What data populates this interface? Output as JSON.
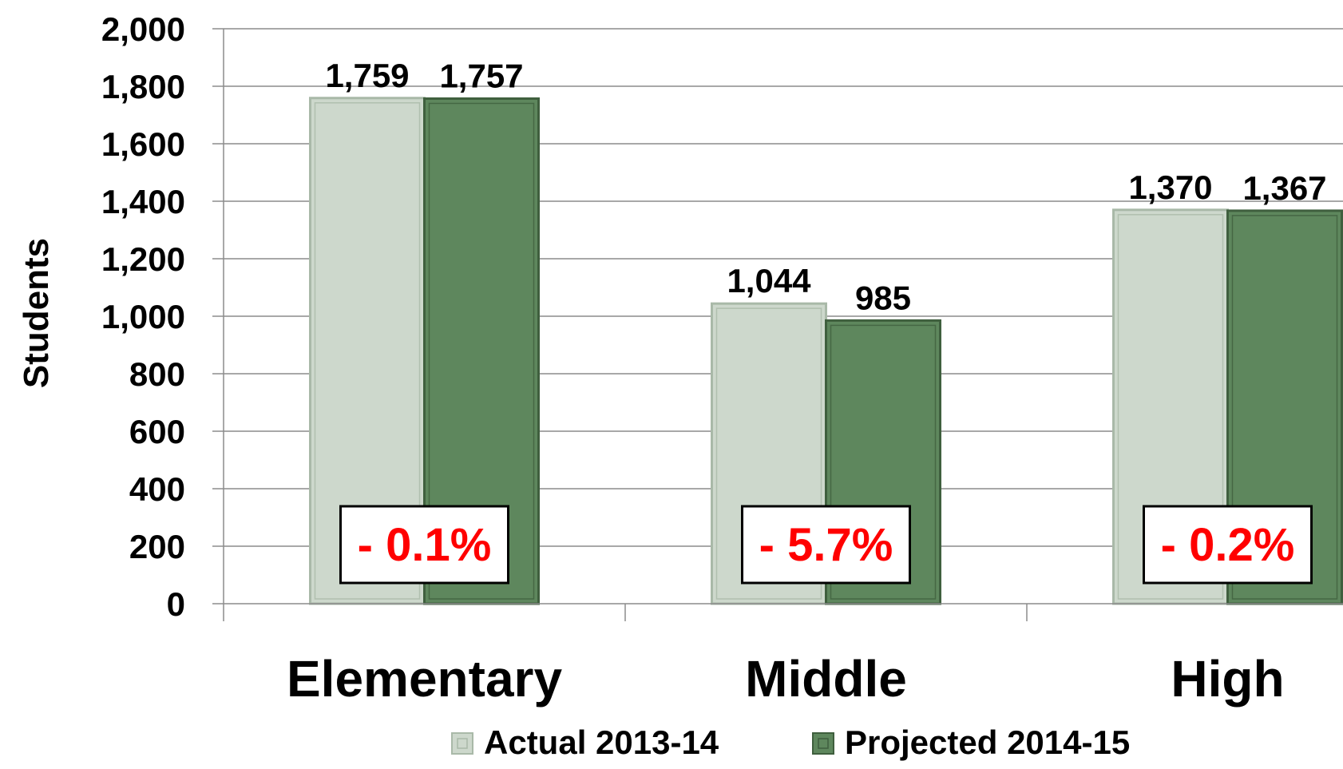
{
  "chart_data": {
    "type": "bar",
    "ylabel": "Students",
    "xlabel": "",
    "ylim": [
      0,
      2000
    ],
    "ytick_step": 200,
    "categories": [
      "Elementary",
      "Middle",
      "High"
    ],
    "series": [
      {
        "name": "Actual 2013-14",
        "values": [
          1759,
          1044,
          1370
        ],
        "labels": [
          "1,759",
          "1,044",
          "1,370"
        ],
        "color": "#cdd8cc",
        "border": "#a9b9a8"
      },
      {
        "name": "Projected 2014-15",
        "values": [
          1757,
          985,
          1367
        ],
        "labels": [
          "1,757",
          "985",
          "1,367"
        ],
        "color": "#5e875d",
        "border": "#3f5f3e"
      }
    ],
    "changes": [
      "- 0.1%",
      "- 5.7%",
      "- 0.2%"
    ],
    "change_color": "#ff0000",
    "grid": true,
    "legend": "bottom"
  }
}
